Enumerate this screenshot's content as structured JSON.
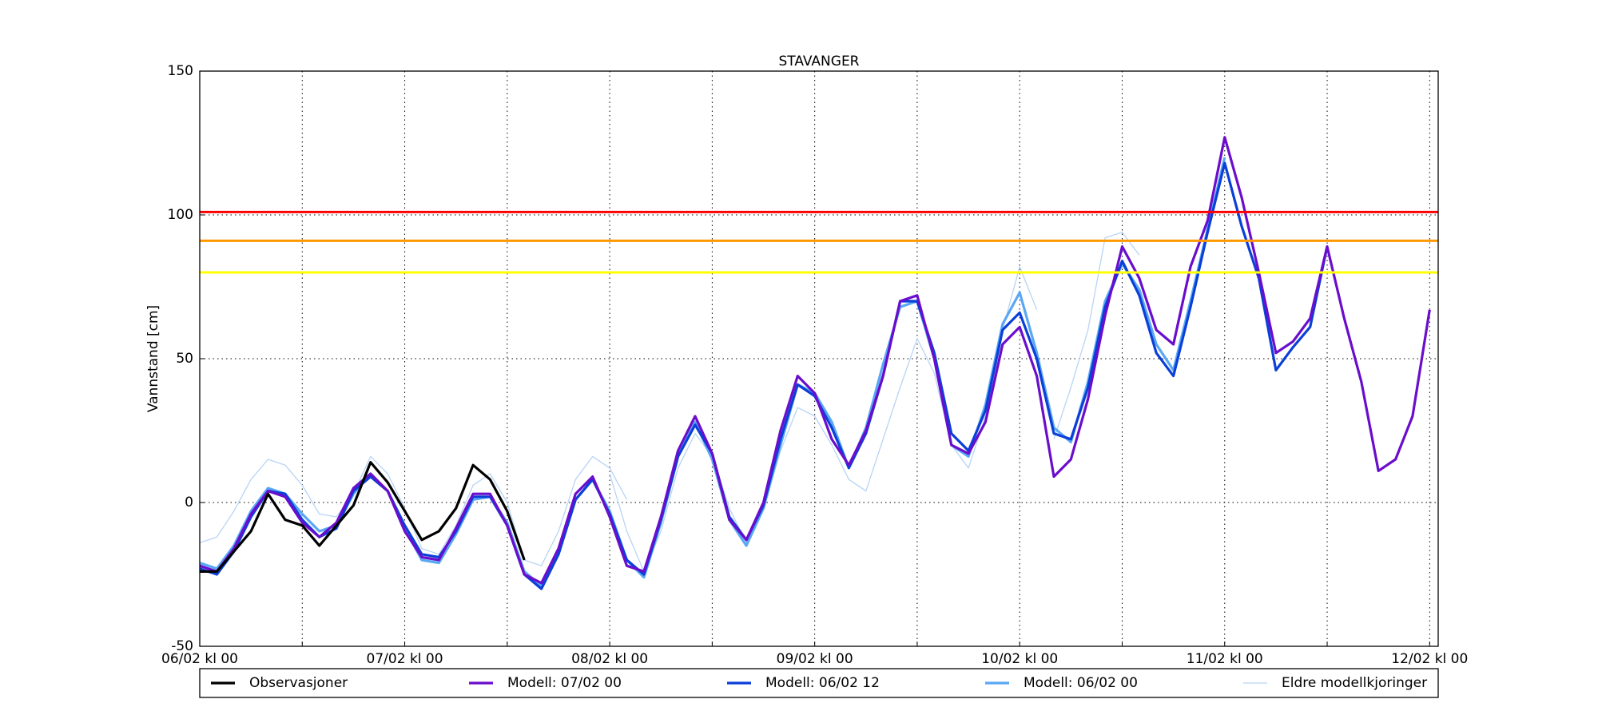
{
  "chart_data": {
    "type": "line",
    "title": "STAVANGER",
    "y_label": "Vannstand [cm]",
    "x": [
      0,
      2,
      4,
      6,
      8,
      10,
      12,
      14,
      16,
      18,
      20,
      22,
      24,
      26,
      28,
      30,
      32,
      34,
      36,
      38,
      40,
      42,
      44,
      46,
      48,
      50,
      52,
      54,
      56,
      58,
      60,
      62,
      64,
      66,
      68,
      70,
      72,
      74,
      76,
      78,
      80,
      82,
      84,
      86,
      88,
      90,
      92,
      94,
      96,
      98,
      100,
      102,
      104,
      106,
      108,
      110,
      112,
      114,
      116,
      118,
      120,
      122,
      124,
      126,
      128,
      130,
      132,
      134,
      136,
      138,
      140,
      142,
      144
    ],
    "xlim": [
      0,
      145
    ],
    "xticks": [
      {
        "value": 0,
        "label": "06/02 kl 00"
      },
      {
        "value": 24,
        "label": "07/02 kl 00"
      },
      {
        "value": 48,
        "label": "08/02 kl 00"
      },
      {
        "value": 72,
        "label": "09/02 kl 00"
      },
      {
        "value": 96,
        "label": "10/02 kl 00"
      },
      {
        "value": 120,
        "label": "11/02 kl 00"
      },
      {
        "value": 144,
        "label": "12/02 kl 00"
      }
    ],
    "xminorticks": [
      12,
      36,
      60,
      84,
      108,
      132
    ],
    "ylim": [
      -50,
      150
    ],
    "yticks": [
      -50,
      0,
      50,
      100,
      150
    ],
    "grid": true,
    "thresholds": [
      {
        "value": 101,
        "color": "#ff0000"
      },
      {
        "value": 91,
        "color": "#ff9900"
      },
      {
        "value": 80,
        "color": "#ffff00"
      }
    ],
    "older_runs": {
      "name": "Eldre modellkjoringer",
      "color": "#b8d4f5",
      "runs": [
        [
          -14,
          -12,
          -3,
          8,
          15,
          13,
          6,
          -4,
          -5,
          3,
          16,
          10,
          -2,
          -16,
          -18,
          -8,
          6,
          10,
          0,
          -20,
          -22,
          -10,
          8,
          16,
          12,
          1,
          null,
          null,
          null,
          null,
          null,
          null,
          null,
          null,
          null,
          null,
          null,
          null,
          null,
          null,
          null,
          null,
          null,
          null,
          null,
          null,
          null,
          null,
          null,
          null,
          null,
          null,
          null,
          null,
          null,
          null,
          null,
          null,
          null,
          null,
          null,
          null,
          null,
          null,
          null,
          null,
          null,
          null,
          null,
          null,
          null,
          null,
          null
        ],
        [
          null,
          null,
          null,
          null,
          null,
          null,
          null,
          null,
          null,
          null,
          null,
          null,
          null,
          null,
          null,
          null,
          null,
          null,
          null,
          null,
          null,
          null,
          null,
          null,
          10,
          -10,
          -24,
          -10,
          12,
          24,
          16,
          -2,
          -14,
          -2,
          18,
          33,
          30,
          20,
          8,
          4,
          22,
          40,
          57,
          45,
          20,
          12,
          30,
          60,
          82,
          67,
          null,
          null,
          null,
          null,
          null,
          null,
          null,
          null,
          null,
          null,
          null,
          null,
          null,
          null,
          null,
          null,
          null,
          null,
          null,
          null,
          null,
          null,
          null
        ],
        [
          null,
          null,
          null,
          null,
          null,
          null,
          null,
          null,
          null,
          null,
          null,
          null,
          null,
          null,
          null,
          null,
          null,
          null,
          null,
          null,
          null,
          null,
          null,
          null,
          null,
          null,
          null,
          null,
          null,
          null,
          null,
          null,
          null,
          null,
          null,
          null,
          null,
          null,
          null,
          null,
          null,
          null,
          null,
          null,
          null,
          null,
          null,
          null,
          null,
          null,
          22,
          40,
          60,
          92,
          94,
          86,
          null,
          null,
          null,
          null,
          null,
          null,
          null,
          null,
          null,
          null,
          null,
          null,
          null,
          null,
          null,
          null,
          null
        ]
      ]
    },
    "series": [
      {
        "name": "Observasjoner",
        "color": "#000000",
        "values": [
          -24,
          -24,
          -17,
          -10,
          3,
          -6,
          -8,
          -15,
          -8,
          -1,
          14,
          7,
          -3,
          -13,
          -10,
          -2,
          13,
          8,
          -3,
          -20,
          null,
          null,
          null,
          null,
          null,
          null,
          null,
          null,
          null,
          null,
          null,
          null,
          null,
          null,
          null,
          null,
          null,
          null,
          null,
          null,
          null,
          null,
          null,
          null,
          null,
          null,
          null,
          null,
          null,
          null,
          null,
          null,
          null,
          null,
          null,
          null,
          null,
          null,
          null,
          null,
          null,
          null,
          null,
          null,
          null,
          null,
          null,
          null,
          null,
          null,
          null,
          null,
          null
        ]
      },
      {
        "name": "Modell: 07/02 00",
        "color": "#6a0dcc",
        "values": [
          -22,
          -24,
          -16,
          -4,
          4,
          2,
          -7,
          -12,
          -7,
          5,
          10,
          4,
          -10,
          -19,
          -20,
          -9,
          3,
          3,
          -8,
          -25,
          -28,
          -16,
          3,
          9,
          -5,
          -22,
          -24,
          -5,
          18,
          30,
          17,
          -6,
          -13,
          0,
          25,
          44,
          38,
          22,
          13,
          25,
          44,
          70,
          72,
          50,
          20,
          17,
          28,
          55,
          61,
          44,
          9,
          15,
          36,
          65,
          89,
          78,
          60,
          55,
          82,
          98,
          127,
          106,
          80,
          52,
          56,
          64,
          89,
          64,
          42,
          11,
          15,
          30,
          67
        ]
      },
      {
        "name": "Modell: 06/02 12",
        "color": "#0a3fd8",
        "values": [
          -23,
          -25,
          -17,
          -5,
          4,
          3,
          -6,
          -12,
          -9,
          4,
          9,
          4,
          -8,
          -18,
          -19,
          -10,
          2,
          2,
          -8,
          -25,
          -30,
          -18,
          1,
          8,
          -4,
          -20,
          -25,
          -6,
          16,
          27,
          17,
          -5,
          -13,
          -1,
          22,
          41,
          37,
          26,
          12,
          24,
          44,
          70,
          70,
          52,
          24,
          18,
          32,
          60,
          66,
          50,
          24,
          22,
          40,
          68,
          84,
          72,
          52,
          44,
          68,
          94,
          118,
          96,
          78,
          46,
          54,
          61,
          89,
          null,
          null,
          null,
          null,
          null,
          null
        ]
      },
      {
        "name": "Modell: 06/02 00",
        "color": "#5aa8f5",
        "values": [
          -21,
          -23,
          -15,
          -3,
          5,
          3,
          -4,
          -10,
          -8,
          3,
          10,
          4,
          -9,
          -20,
          -21,
          -11,
          1,
          2,
          -7,
          -24,
          -29,
          -18,
          1,
          8,
          -3,
          -20,
          -26,
          -7,
          16,
          28,
          15,
          -6,
          -15,
          -2,
          20,
          41,
          38,
          28,
          12,
          26,
          48,
          68,
          70,
          50,
          20,
          16,
          34,
          62,
          73,
          52,
          26,
          21,
          42,
          70,
          83,
          74,
          55,
          46,
          70,
          95,
          120,
          null,
          null,
          null,
          null,
          null,
          null,
          null,
          null,
          null,
          null,
          null,
          null
        ]
      }
    ]
  }
}
